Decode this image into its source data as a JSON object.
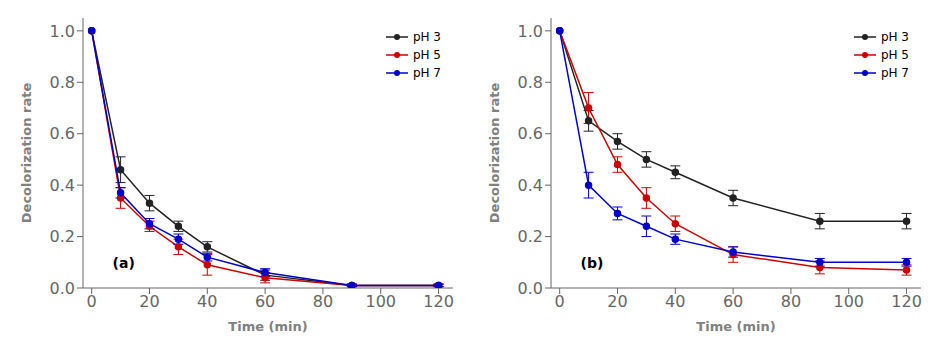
{
  "chart_data": [
    {
      "type": "line",
      "title": "(a)",
      "x_label": "Time (min)",
      "y_label": "Decolorization rate",
      "x": [
        0,
        10,
        20,
        30,
        40,
        60,
        90,
        120
      ],
      "series": [
        {
          "name": "pH 3",
          "color": "#222222",
          "marker": "circle",
          "values": [
            1.0,
            0.46,
            0.33,
            0.24,
            0.16,
            0.05,
            0.01,
            0.01
          ],
          "error": [
            0.0,
            0.05,
            0.03,
            0.02,
            0.02,
            0.02,
            0.005,
            0.005
          ]
        },
        {
          "name": "pH 5",
          "color": "#cc0000",
          "marker": "circle",
          "values": [
            1.0,
            0.35,
            0.24,
            0.16,
            0.09,
            0.04,
            0.01,
            0.01
          ],
          "error": [
            0.0,
            0.04,
            0.02,
            0.03,
            0.04,
            0.02,
            0.005,
            0.005
          ]
        },
        {
          "name": "pH 7",
          "color": "#0000cc",
          "marker": "circle",
          "values": [
            1.0,
            0.37,
            0.25,
            0.19,
            0.12,
            0.06,
            0.01,
            0.01
          ],
          "error": [
            0.0,
            0.02,
            0.02,
            0.02,
            0.015,
            0.015,
            0.005,
            0.005
          ]
        }
      ],
      "xlim": [
        -3,
        125
      ],
      "xticks": [
        0,
        20,
        40,
        60,
        80,
        100,
        120
      ],
      "ylim": [
        0.0,
        1.05
      ],
      "yticks": [
        {
          "value": 0,
          "label": "0.0"
        },
        0.2,
        0.4,
        0.6,
        0.8,
        {
          "value": 1,
          "label": "1.0"
        }
      ],
      "grid": false,
      "legend": "upper right"
    },
    {
      "type": "line",
      "title": "(b)",
      "x_label": "Time (min)",
      "y_label": "Decolorization rate",
      "x": [
        0,
        10,
        20,
        30,
        40,
        60,
        90,
        120
      ],
      "series": [
        {
          "name": "pH 3",
          "color": "#222222",
          "marker": "circle",
          "values": [
            1.0,
            0.65,
            0.57,
            0.5,
            0.45,
            0.35,
            0.26,
            0.26
          ],
          "error": [
            0.0,
            0.04,
            0.03,
            0.03,
            0.025,
            0.03,
            0.03,
            0.03
          ]
        },
        {
          "name": "pH 5",
          "color": "#cc0000",
          "marker": "circle",
          "values": [
            1.0,
            0.7,
            0.48,
            0.35,
            0.25,
            0.13,
            0.08,
            0.07
          ],
          "error": [
            0.0,
            0.06,
            0.03,
            0.04,
            0.03,
            0.03,
            0.025,
            0.02
          ]
        },
        {
          "name": "pH 7",
          "color": "#0000cc",
          "marker": "circle",
          "values": [
            1.0,
            0.4,
            0.29,
            0.24,
            0.19,
            0.14,
            0.1,
            0.1
          ],
          "error": [
            0.0,
            0.05,
            0.025,
            0.04,
            0.02,
            0.02,
            0.015,
            0.015
          ]
        }
      ],
      "xlim": [
        -3,
        125
      ],
      "xticks": [
        0,
        20,
        40,
        60,
        80,
        100,
        120
      ],
      "ylim": [
        0.0,
        1.05
      ],
      "yticks": [
        {
          "value": 0,
          "label": "0.0"
        },
        0.2,
        0.4,
        0.6,
        0.8,
        {
          "value": 1,
          "label": "1.0"
        }
      ],
      "grid": false,
      "legend": "upper right"
    }
  ]
}
